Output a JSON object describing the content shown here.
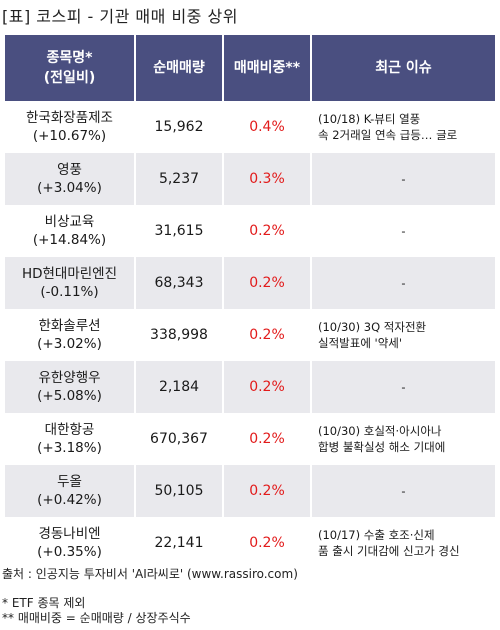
{
  "title": "[표] 코스피 - 기관 매매 비중 상위",
  "headers": {
    "name": [
      "종목명*",
      "(전일비)"
    ],
    "volume": "순매매량",
    "ratio": "매매비중**",
    "issue": "최근 이슈"
  },
  "rows": [
    {
      "name": "한국화장품제조",
      "change": "(+10.67%)",
      "volume": "15,962",
      "ratio": "0.4%",
      "issue": [
        "(10/18) K-뷰티 열풍",
        "속 2거래일 연속 급등… 글로"
      ]
    },
    {
      "name": "영풍",
      "change": "(+3.04%)",
      "volume": "5,237",
      "ratio": "0.3%",
      "issue": [
        "-"
      ]
    },
    {
      "name": "비상교육",
      "change": "(+14.84%)",
      "volume": "31,615",
      "ratio": "0.2%",
      "issue": [
        "-"
      ]
    },
    {
      "name": "HD현대마린엔진",
      "change": "(-0.11%)",
      "volume": "68,343",
      "ratio": "0.2%",
      "issue": [
        "-"
      ]
    },
    {
      "name": "한화솔루션",
      "change": "(+3.02%)",
      "volume": "338,998",
      "ratio": "0.2%",
      "issue": [
        "(10/30) 3Q 적자전환",
        "실적발표에 '약세'"
      ]
    },
    {
      "name": "유한양행우",
      "change": "(+5.08%)",
      "volume": "2,184",
      "ratio": "0.2%",
      "issue": [
        "-"
      ]
    },
    {
      "name": "대한항공",
      "change": "(+3.18%)",
      "volume": "670,367",
      "ratio": "0.2%",
      "issue": [
        "(10/30) 호실적·아시아나",
        "합병 불확실성 해소 기대에"
      ]
    },
    {
      "name": "두올",
      "change": "(+0.42%)",
      "volume": "50,105",
      "ratio": "0.2%",
      "issue": [
        "-"
      ]
    },
    {
      "name": "경동나비엔",
      "change": "(+0.35%)",
      "volume": "22,141",
      "ratio": "0.2%",
      "issue": [
        "(10/17) 수출 호조·신제",
        "품 출시 기대감에 신고가 경신"
      ]
    }
  ],
  "footer": {
    "source": "출처 : 인공지능 투자비서 'AI라씨로' (www.rassiro.com)",
    "note1": "* ETF 종목 제외",
    "note2": "** 매매비중 = 순매매량 / 상장주식수"
  },
  "colors": {
    "header_bg": "#4a4f80",
    "ratio_text": "#e21b1b",
    "stripe": "#e9e9ed"
  }
}
